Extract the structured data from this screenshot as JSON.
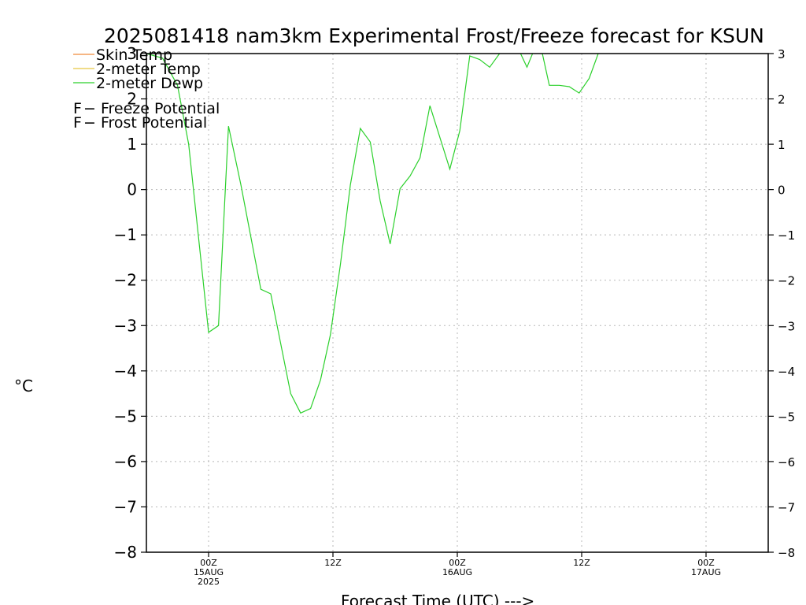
{
  "chart_data": {
    "type": "line",
    "title": "2025081418 nam3km Experimental Frost/Freeze forecast for KSUN",
    "ylabel": "°C",
    "xlabel": "Forecast Time (UTC) --->",
    "ylim": [
      -8,
      3
    ],
    "xlim_hours": [
      -5,
      45
    ],
    "grid": true,
    "yticks": [
      -8,
      -7,
      -6,
      -5,
      -4,
      -3,
      -2,
      -1,
      0,
      1,
      2,
      3
    ],
    "ytick_labels": [
      "−8",
      "−7",
      "−6",
      "−5",
      "−4",
      "−3",
      "−2",
      "−1",
      "0",
      "1",
      "2",
      "3"
    ],
    "xticks": [
      {
        "hour": 0,
        "line1": "00Z",
        "line2": "15AUG",
        "line3": "2025"
      },
      {
        "hour": 10,
        "line1": "12Z",
        "line2": "",
        "line3": ""
      },
      {
        "hour": 20,
        "line1": "00Z",
        "line2": "16AUG",
        "line3": ""
      },
      {
        "hour": 30,
        "line1": "12Z",
        "line2": "",
        "line3": ""
      },
      {
        "hour": 40,
        "line1": "00Z",
        "line2": "17AUG",
        "line3": ""
      }
    ],
    "legend": [
      {
        "label": "Skin Temp",
        "color": "#f08a3a"
      },
      {
        "label": "2-meter Temp",
        "color": "#e8c840"
      },
      {
        "label": "2-meter Dewp",
        "color": "#2bd02b"
      }
    ],
    "potential_legend": [
      {
        "symbol": "F",
        "label": " − Freeze Potential",
        "color": "#c83ca0"
      },
      {
        "symbol": "F",
        "label": " − Frost Potential",
        "color": "#4a64e0"
      }
    ],
    "series": [
      {
        "name": "2-meter Dewp",
        "color": "#2bd02b",
        "points": [
          [
            -5,
            3.0
          ],
          [
            -3.7,
            2.9
          ],
          [
            -2.5,
            2.3
          ],
          [
            -1.6,
            1.0
          ],
          [
            0,
            -3.15
          ],
          [
            0.8,
            -3.0
          ],
          [
            1.6,
            1.4
          ],
          [
            2.6,
            0.1
          ],
          [
            4.2,
            -2.2
          ],
          [
            5,
            -2.3
          ],
          [
            6.6,
            -4.5
          ],
          [
            7.4,
            -4.93
          ],
          [
            8.2,
            -4.83
          ],
          [
            9.0,
            -4.2
          ],
          [
            9.8,
            -3.2
          ],
          [
            10.6,
            -1.65
          ],
          [
            11.4,
            0.1
          ],
          [
            12.2,
            1.35
          ],
          [
            13.0,
            1.05
          ],
          [
            13.8,
            -0.25
          ],
          [
            14.6,
            -1.2
          ],
          [
            15.4,
            0.02
          ],
          [
            16.2,
            0.3
          ],
          [
            17.0,
            0.7
          ],
          [
            17.8,
            1.85
          ],
          [
            19.4,
            0.45
          ],
          [
            20.2,
            1.3
          ],
          [
            21.0,
            2.95
          ],
          [
            21.8,
            2.87
          ],
          [
            22.6,
            2.7
          ],
          [
            23.4,
            3.0
          ],
          [
            24.0,
            3.2
          ],
          [
            25.0,
            3.05
          ],
          [
            25.6,
            2.7
          ],
          [
            26.2,
            3.1
          ],
          [
            26.8,
            3.05
          ],
          [
            27.4,
            2.3
          ],
          [
            28.2,
            2.3
          ],
          [
            29.0,
            2.27
          ],
          [
            29.8,
            2.13
          ],
          [
            30.6,
            2.45
          ],
          [
            31.4,
            3.05
          ]
        ]
      }
    ]
  }
}
